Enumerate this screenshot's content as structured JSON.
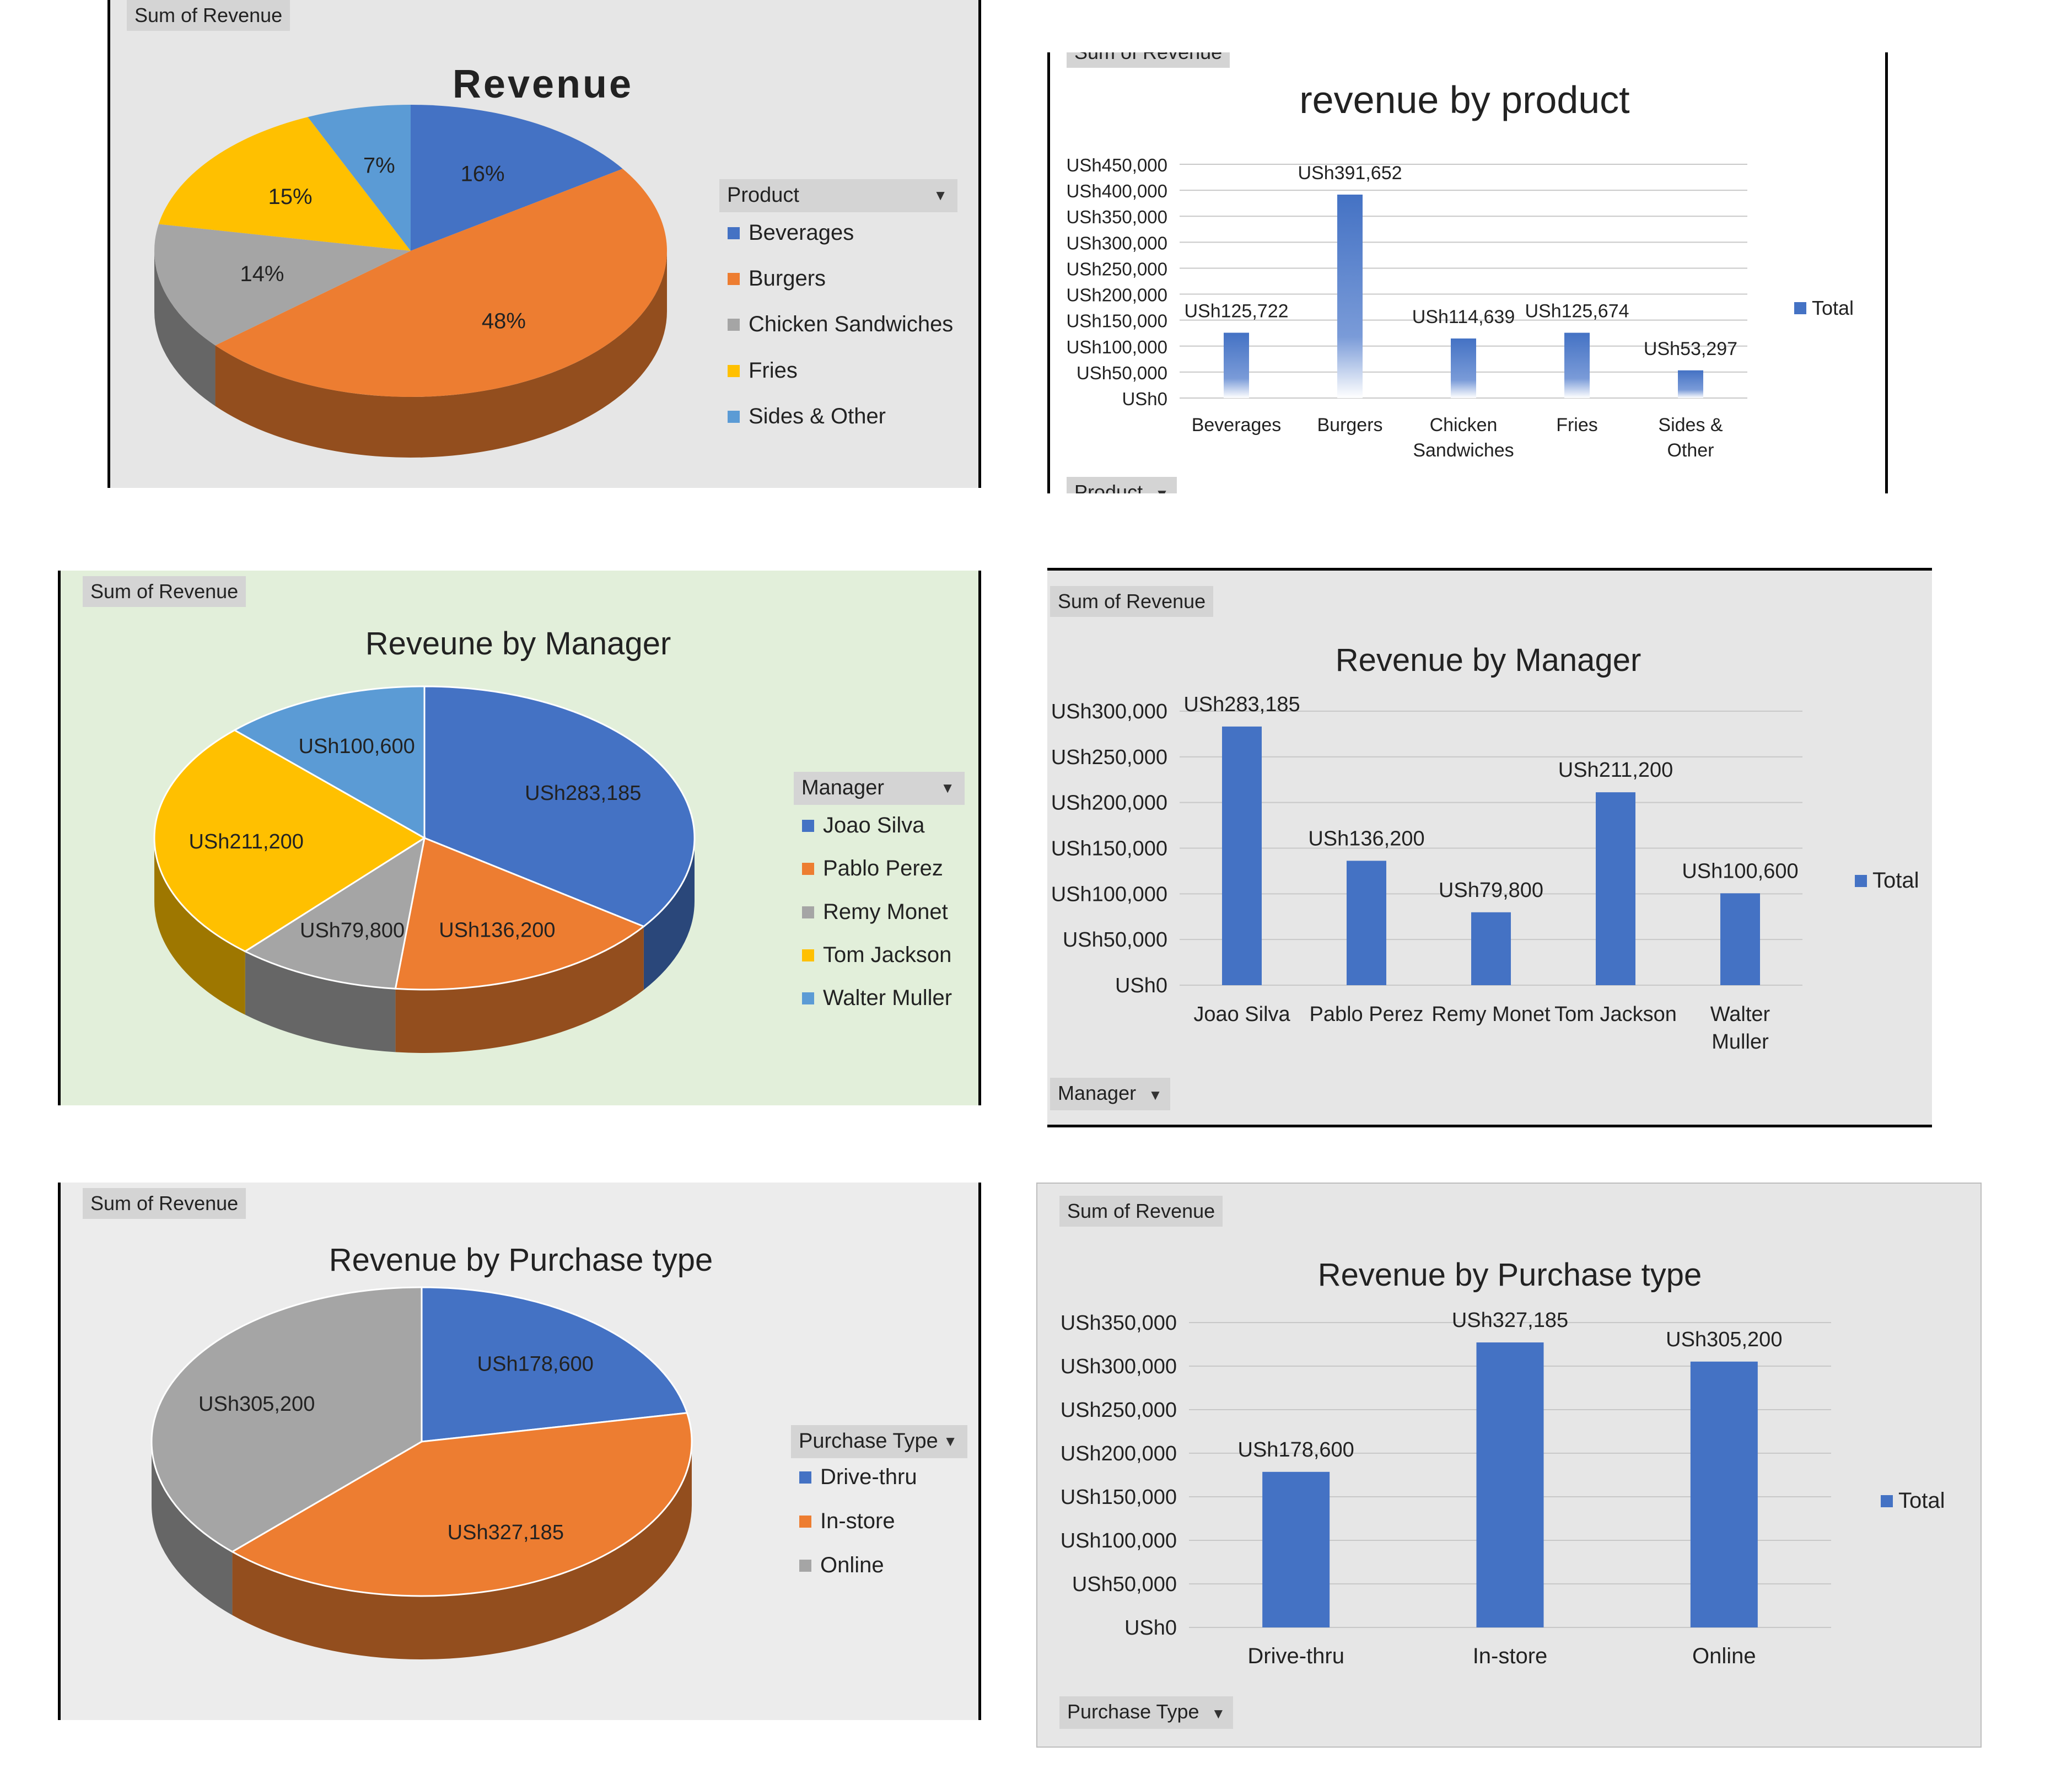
{
  "pill_label": "Sum of Revenue",
  "colors": {
    "blue": "#4472c4",
    "orange": "#ed7d31",
    "gray": "#a5a5a5",
    "yellow": "#ffc000",
    "lightblue": "#5b9bd5"
  },
  "panels": {
    "p1": {
      "title": "Revenue",
      "legend_title": "Product",
      "legend": [
        "Beverages",
        "Burgers",
        "Chicken Sandwiches",
        "Fries",
        "Sides & Other"
      ]
    },
    "p2": {
      "title": "revenue by product",
      "filter_label": "Product",
      "legend": "Total"
    },
    "p3": {
      "title": "Reveune by Manager",
      "legend_title": "Manager",
      "legend": [
        "Joao Silva",
        "Pablo Perez",
        "Remy Monet",
        "Tom Jackson",
        "Walter Muller"
      ]
    },
    "p4": {
      "title": "Revenue by Manager",
      "filter_label": "Manager",
      "legend": "Total"
    },
    "p5": {
      "title": "Revenue by Purchase type",
      "legend_title": "Purchase Type",
      "legend": [
        "Drive-thru",
        "In-store",
        "Online"
      ]
    },
    "p6": {
      "title": "Revenue by Purchase type",
      "filter_label": "Purchase Type",
      "legend": "Total"
    }
  },
  "chart_data": [
    {
      "type": "pie",
      "title": "Revenue",
      "categories": [
        "Beverages",
        "Burgers",
        "Chicken Sandwiches",
        "Fries",
        "Sides & Other"
      ],
      "values": [
        125722,
        391652,
        114639,
        125674,
        53297
      ],
      "data_labels": [
        "16%",
        "48%",
        "14%",
        "15%",
        "7%"
      ],
      "legend_title": "Product",
      "legend_position": "right"
    },
    {
      "type": "bar",
      "title": "revenue by product",
      "categories": [
        "Beverages",
        "Burgers",
        "Chicken Sandwiches",
        "Fries",
        "Sides & Other"
      ],
      "series": [
        {
          "name": "Total",
          "values": [
            125722,
            391652,
            114639,
            125674,
            53297
          ]
        }
      ],
      "data_labels": [
        "USh125,722",
        "USh391,652",
        "USh114,639",
        "USh125,674",
        "USh53,297"
      ],
      "yticks": [
        "USh0",
        "USh50,000",
        "USh100,000",
        "USh150,000",
        "USh200,000",
        "USh250,000",
        "USh300,000",
        "USh350,000",
        "USh400,000",
        "USh450,000"
      ],
      "ylim": [
        0,
        450000
      ],
      "grid": true,
      "legend_position": "right"
    },
    {
      "type": "pie",
      "title": "Reveune by Manager",
      "categories": [
        "Joao Silva",
        "Pablo Perez",
        "Remy Monet",
        "Tom Jackson",
        "Walter Muller"
      ],
      "values": [
        283185,
        136200,
        79800,
        211200,
        100600
      ],
      "data_labels": [
        "USh283,185",
        "USh136,200",
        "USh79,800",
        "USh211,200",
        "USh100,600"
      ],
      "legend_title": "Manager",
      "legend_position": "right"
    },
    {
      "type": "bar",
      "title": "Revenue by Manager",
      "categories": [
        "Joao Silva",
        "Pablo Perez",
        "Remy Monet",
        "Tom Jackson",
        "Walter Muller"
      ],
      "series": [
        {
          "name": "Total",
          "values": [
            283185,
            136200,
            79800,
            211200,
            100600
          ]
        }
      ],
      "data_labels": [
        "USh283,185",
        "USh136,200",
        "USh79,800",
        "USh211,200",
        "USh100,600"
      ],
      "yticks": [
        "USh0",
        "USh50,000",
        "USh100,000",
        "USh150,000",
        "USh200,000",
        "USh250,000",
        "USh300,000"
      ],
      "ylim": [
        0,
        300000
      ],
      "grid": true,
      "legend_position": "right"
    },
    {
      "type": "pie",
      "title": "Revenue by Purchase type",
      "categories": [
        "Drive-thru",
        "In-store",
        "Online"
      ],
      "values": [
        178600,
        327185,
        305200
      ],
      "data_labels": [
        "USh178,600",
        "USh327,185",
        "USh305,200"
      ],
      "legend_title": "Purchase Type",
      "legend_position": "right"
    },
    {
      "type": "bar",
      "title": "Revenue by Purchase type",
      "categories": [
        "Drive-thru",
        "In-store",
        "Online"
      ],
      "series": [
        {
          "name": "Total",
          "values": [
            178600,
            327185,
            305200
          ]
        }
      ],
      "data_labels": [
        "USh178,600",
        "USh327,185",
        "USh305,200"
      ],
      "yticks": [
        "USh0",
        "USh50,000",
        "USh100,000",
        "USh150,000",
        "USh200,000",
        "USh250,000",
        "USh300,000",
        "USh350,000"
      ],
      "ylim": [
        0,
        350000
      ],
      "grid": true,
      "legend_position": "right"
    }
  ]
}
